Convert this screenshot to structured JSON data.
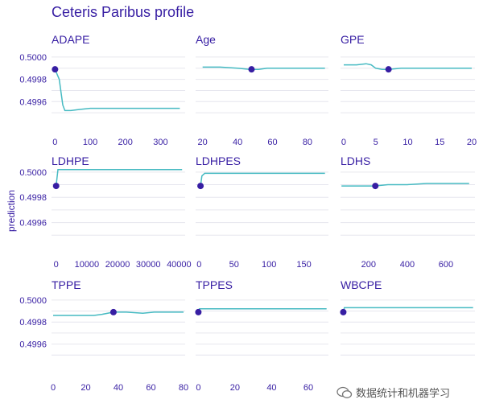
{
  "title": "Ceteris Paribus profile",
  "watermark": "数据统计和机器学习",
  "colors": {
    "line": "#46bac2",
    "point": "#371ea3",
    "grid": "#e6e6ee",
    "text": "#371ea3"
  },
  "chart_data": {
    "type": "line",
    "ylabel": "prediction",
    "ylim": [
      0.4994,
      0.50005
    ],
    "y_ticks": [
      0.4996,
      0.4998,
      0.5
    ],
    "y_tick_labels": [
      "0.4996",
      "0.4998",
      "0.5000"
    ],
    "panels": [
      {
        "name": "ADAPE",
        "xlim": [
          -10,
          370
        ],
        "x_ticks": [
          0,
          100,
          200,
          300
        ],
        "x_tick_labels": [
          "0",
          "100",
          "200",
          "300"
        ],
        "line": [
          [
            0,
            0.49989
          ],
          [
            12,
            0.4998
          ],
          [
            22,
            0.49957
          ],
          [
            28,
            0.49952
          ],
          [
            45,
            0.49952
          ],
          [
            70,
            0.49953
          ],
          [
            100,
            0.49954
          ],
          [
            150,
            0.49954
          ],
          [
            355,
            0.49954
          ]
        ],
        "point": [
          0,
          0.49989
        ]
      },
      {
        "name": "Age",
        "xlim": [
          16,
          92
        ],
        "x_ticks": [
          20,
          40,
          60,
          80
        ],
        "x_tick_labels": [
          "20",
          "40",
          "60",
          "80"
        ],
        "line": [
          [
            20,
            0.49991
          ],
          [
            30,
            0.49991
          ],
          [
            40,
            0.4999
          ],
          [
            47,
            0.49989
          ],
          [
            52,
            0.49989
          ],
          [
            57,
            0.4999
          ],
          [
            62,
            0.4999
          ],
          [
            70,
            0.4999
          ],
          [
            90,
            0.4999
          ]
        ],
        "point": [
          48,
          0.49989
        ]
      },
      {
        "name": "GPE",
        "xlim": [
          -0.5,
          20.5
        ],
        "x_ticks": [
          0,
          5,
          10,
          15,
          20
        ],
        "x_tick_labels": [
          "0",
          "5",
          "10",
          "15",
          "20"
        ],
        "line": [
          [
            0,
            0.49993
          ],
          [
            2,
            0.49993
          ],
          [
            3.5,
            0.49994
          ],
          [
            4.3,
            0.49993
          ],
          [
            5,
            0.4999
          ],
          [
            6,
            0.49989
          ],
          [
            7,
            0.49989
          ],
          [
            9,
            0.4999
          ],
          [
            20,
            0.4999
          ]
        ],
        "point": [
          7,
          0.49989
        ]
      },
      {
        "name": "LDHPE",
        "xlim": [
          -1500,
          42000
        ],
        "x_ticks": [
          0,
          10000,
          20000,
          30000,
          40000
        ],
        "x_tick_labels": [
          "0",
          "10000",
          "20000",
          "30000",
          "40000"
        ],
        "line": [
          [
            0,
            0.49989
          ],
          [
            600,
            0.50002
          ],
          [
            1500,
            0.50002
          ],
          [
            41000,
            0.50002
          ]
        ],
        "point": [
          0,
          0.49989
        ]
      },
      {
        "name": "LDHPES",
        "xlim": [
          -5,
          185
        ],
        "x_ticks": [
          0,
          50,
          100,
          150
        ],
        "x_tick_labels": [
          "0",
          "50",
          "100",
          "150"
        ],
        "line": [
          [
            2,
            0.49989
          ],
          [
            4,
            0.49997
          ],
          [
            8,
            0.49999
          ],
          [
            12,
            0.49999
          ],
          [
            180,
            0.49999
          ]
        ],
        "point": [
          2,
          0.49989
        ]
      },
      {
        "name": "LDHS",
        "xlim": [
          55,
          750
        ],
        "x_ticks": [
          200,
          400,
          600
        ],
        "x_tick_labels": [
          "200",
          "400",
          "600"
        ],
        "line": [
          [
            60,
            0.49989
          ],
          [
            150,
            0.49989
          ],
          [
            230,
            0.49989
          ],
          [
            300,
            0.4999
          ],
          [
            400,
            0.4999
          ],
          [
            500,
            0.49991
          ],
          [
            720,
            0.49991
          ]
        ],
        "point": [
          235,
          0.49989
        ]
      },
      {
        "name": "TPPE",
        "xlim": [
          -1,
          81
        ],
        "x_ticks": [
          0,
          20,
          40,
          60,
          80
        ],
        "x_tick_labels": [
          "0",
          "20",
          "40",
          "60",
          "80"
        ],
        "line": [
          [
            0,
            0.49986
          ],
          [
            25,
            0.49986
          ],
          [
            30,
            0.49987
          ],
          [
            37,
            0.49989
          ],
          [
            45,
            0.49989
          ],
          [
            55,
            0.49988
          ],
          [
            62,
            0.49989
          ],
          [
            80,
            0.49989
          ]
        ],
        "point": [
          37,
          0.49989
        ]
      },
      {
        "name": "TPPES",
        "xlim": [
          -1.5,
          71
        ],
        "x_ticks": [
          0,
          20,
          40,
          60
        ],
        "x_tick_labels": [
          "0",
          "20",
          "40",
          "60"
        ],
        "line": [
          [
            0,
            0.49989
          ],
          [
            0.6,
            0.49992
          ],
          [
            70,
            0.49992
          ]
        ],
        "point": [
          0,
          0.49989
        ]
      },
      {
        "name": "WBCPE",
        "xlim": [
          -1.5,
          71
        ],
        "x_ticks": [],
        "x_tick_labels": [],
        "line": [
          [
            0,
            0.49989
          ],
          [
            0.6,
            0.49993
          ],
          [
            70,
            0.49993
          ]
        ],
        "point": [
          0,
          0.49989
        ]
      }
    ]
  }
}
